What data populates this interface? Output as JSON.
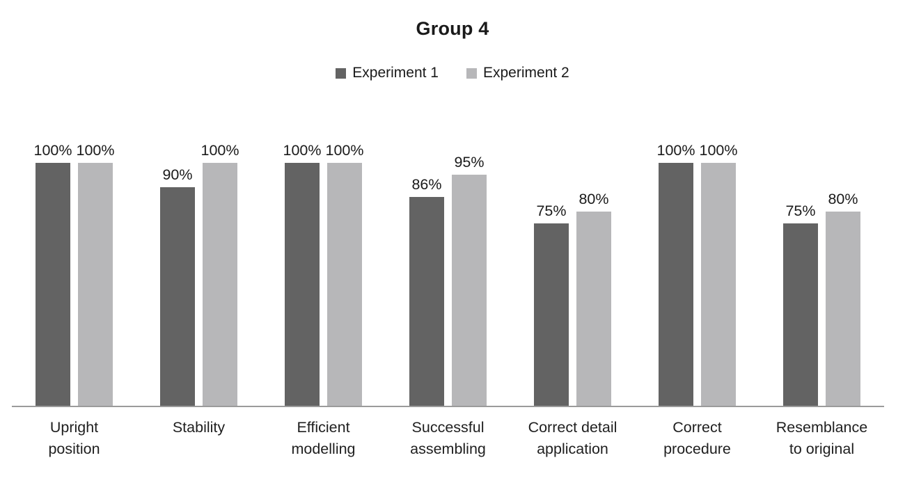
{
  "title": "Group 4",
  "colors": {
    "bar_experiment_1": "#636363",
    "bar_experiment_2": "#b7b7b9",
    "axis_line": "#9b9b9b",
    "text": "#1a1a1a",
    "background": "#ffffff"
  },
  "chart_data": {
    "type": "bar",
    "title": "Group 4",
    "categories": [
      "Upright position",
      "Stability",
      "Efficient modelling",
      "Successful assembling",
      "Correct detail application",
      "Correct procedure",
      "Resemblance to original"
    ],
    "category_labels_wrapped": [
      "Upright\nposition",
      "Stability",
      "Efficient\nmodelling",
      "Successful\nassembling",
      "Correct detail\napplication",
      "Correct\nprocedure",
      "Resemblance\nto original"
    ],
    "series": [
      {
        "name": "Experiment 1",
        "color": "#636363",
        "values": [
          100,
          90,
          100,
          86,
          75,
          100,
          75
        ],
        "labels": [
          "100%",
          "90%",
          "100%",
          "86%",
          "75%",
          "100%",
          "75%"
        ]
      },
      {
        "name": "Experiment 2",
        "color": "#b7b7b9",
        "values": [
          100,
          100,
          100,
          95,
          80,
          100,
          80
        ],
        "labels": [
          "100%",
          "100%",
          "100%",
          "95%",
          "80%",
          "100%",
          "80%"
        ]
      }
    ],
    "xlabel": "",
    "ylabel": "",
    "ylim": [
      0,
      100
    ],
    "grid": false,
    "y_axis_visible": false,
    "legend_position": "top",
    "value_labels_visible": true
  }
}
